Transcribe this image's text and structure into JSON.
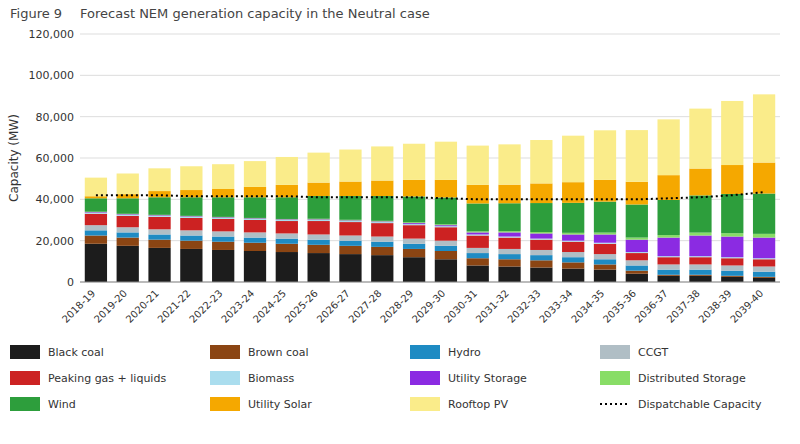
{
  "chart_data": {
    "type": "bar",
    "stacked": true,
    "title": "Forecast NEM generation capacity in the Neutral case",
    "annotations": [
      {
        "text": "Figure 9"
      }
    ],
    "ylabel": "Capacity (MW)",
    "categories": [
      "2018-19",
      "2019-20",
      "2020-21",
      "2021-22",
      "2022-23",
      "2023-24",
      "2024-25",
      "2025-26",
      "2026-27",
      "2027-28",
      "2028-29",
      "2029-30",
      "2030-31",
      "2031-32",
      "2032-33",
      "2033-34",
      "2034-35",
      "2035-36",
      "2036-37",
      "2037-38",
      "2038-39",
      "2039-40"
    ],
    "series": [
      {
        "name": "Black coal",
        "color": "#1c1c1c",
        "values": [
          18500,
          17500,
          16500,
          16000,
          15500,
          15000,
          14500,
          14000,
          13500,
          13000,
          12000,
          11000,
          8000,
          7500,
          7000,
          6500,
          6000,
          4000,
          3000,
          3000,
          2500,
          2000
        ]
      },
      {
        "name": "Brown coal",
        "color": "#8b4513",
        "values": [
          4000,
          4000,
          4000,
          4000,
          4000,
          4000,
          4000,
          4000,
          4000,
          4000,
          4000,
          4000,
          3500,
          3500,
          3500,
          3000,
          2500,
          1500,
          500,
          500,
          500,
          500
        ]
      },
      {
        "name": "Hydro",
        "color": "#1e8bc3",
        "values": [
          2500,
          2500,
          2500,
          2500,
          2500,
          2500,
          2500,
          2500,
          2500,
          2500,
          2500,
          2500,
          2500,
          2500,
          2500,
          2500,
          2500,
          2500,
          2500,
          2500,
          2500,
          2500
        ]
      },
      {
        "name": "CCGT",
        "color": "#b0bec5",
        "values": [
          2500,
          2500,
          2500,
          2500,
          2500,
          2500,
          2500,
          2500,
          2500,
          2500,
          2500,
          2500,
          2500,
          2500,
          2500,
          2500,
          2500,
          2500,
          2500,
          2500,
          2500,
          2500
        ]
      },
      {
        "name": "Peaking gas + liquids",
        "color": "#cc2222",
        "values": [
          5500,
          5500,
          6000,
          6000,
          6000,
          6000,
          6000,
          6500,
          6500,
          6500,
          6500,
          6500,
          6000,
          5500,
          5000,
          5000,
          5000,
          3500,
          3500,
          3500,
          3500,
          3500
        ]
      },
      {
        "name": "Biomass",
        "color": "#aaddee",
        "values": [
          500,
          500,
          500,
          500,
          500,
          500,
          500,
          500,
          500,
          500,
          500,
          500,
          500,
          500,
          500,
          500,
          500,
          500,
          500,
          500,
          500,
          500
        ]
      },
      {
        "name": "Utility Storage",
        "color": "#8b2be2",
        "values": [
          300,
          300,
          300,
          300,
          300,
          300,
          300,
          300,
          300,
          300,
          500,
          500,
          1000,
          2000,
          2500,
          3000,
          4000,
          6000,
          9000,
          10000,
          10000,
          10000
        ]
      },
      {
        "name": "Distributed Storage",
        "color": "#88dd66",
        "values": [
          200,
          200,
          200,
          200,
          200,
          200,
          200,
          300,
          300,
          300,
          400,
          400,
          500,
          600,
          700,
          800,
          900,
          1000,
          1200,
          1400,
          1600,
          1800
        ]
      },
      {
        "name": "Wind",
        "color": "#2d9e3c",
        "values": [
          6500,
          7500,
          8500,
          9000,
          9500,
          10000,
          10500,
          11000,
          11500,
          12000,
          12500,
          13000,
          13500,
          13500,
          14000,
          14500,
          15000,
          16000,
          17000,
          18000,
          19000,
          19500
        ]
      },
      {
        "name": "Utility Solar",
        "color": "#f5a800",
        "values": [
          1000,
          2000,
          3000,
          3500,
          4000,
          5000,
          6000,
          6500,
          7000,
          7500,
          8000,
          8500,
          9000,
          9000,
          9500,
          10000,
          10500,
          11000,
          12000,
          13000,
          14000,
          15000
        ]
      },
      {
        "name": "Rooftop PV",
        "color": "#faec8a",
        "values": [
          9000,
          10000,
          11000,
          11500,
          12000,
          12500,
          13500,
          14500,
          15500,
          16500,
          17500,
          18500,
          19000,
          19500,
          21000,
          22500,
          24000,
          25000,
          27000,
          29000,
          31000,
          33000
        ]
      },
      {
        "name": "Dispatchable Capacity",
        "type": "line",
        "line_style": "dotted",
        "color": "#000000",
        "values": [
          42000,
          42000,
          42000,
          41500,
          41500,
          41500,
          41500,
          41000,
          41000,
          41000,
          41000,
          40500,
          40000,
          40000,
          40000,
          40000,
          40000,
          40000,
          40500,
          41000,
          42000,
          43500
        ]
      }
    ],
    "ylim": [
      0,
      120000
    ],
    "yticks": [
      0,
      {
        "value": 20000,
        "label": "20,000"
      },
      {
        "value": 40000,
        "label": "40,000"
      },
      {
        "value": 60000,
        "label": "60,000"
      },
      {
        "value": 80000,
        "label": "80,000"
      },
      {
        "value": 100000,
        "label": "100,000"
      },
      {
        "value": 120000,
        "label": "120,000"
      }
    ],
    "grid": true,
    "legend": "bottom"
  }
}
